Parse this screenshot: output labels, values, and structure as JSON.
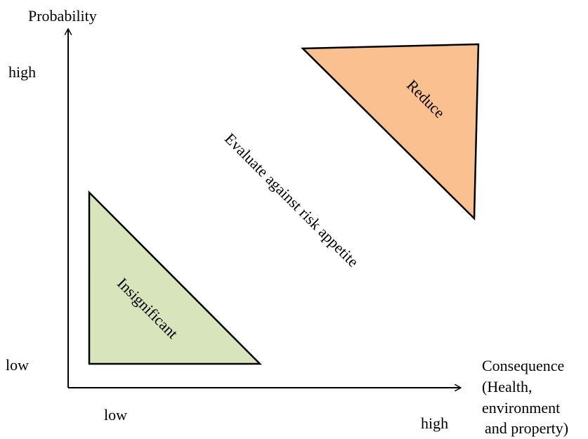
{
  "y_axis": {
    "title": "Probability",
    "high_label": "high",
    "low_label": "low"
  },
  "x_axis": {
    "title_lines": [
      "Consequence",
      "(Health,",
      "environment",
      "and property)"
    ],
    "low_label": "low",
    "high_label": "high"
  },
  "regions": {
    "insignificant": {
      "label": "Insignificant",
      "fill": "#d8e4bc"
    },
    "reduce": {
      "label": "Reduce",
      "fill": "#fac090"
    },
    "middle": {
      "label": "Evaluate against risk appetite"
    }
  },
  "colors": {
    "axis": "#000000",
    "outline": "#000000"
  }
}
